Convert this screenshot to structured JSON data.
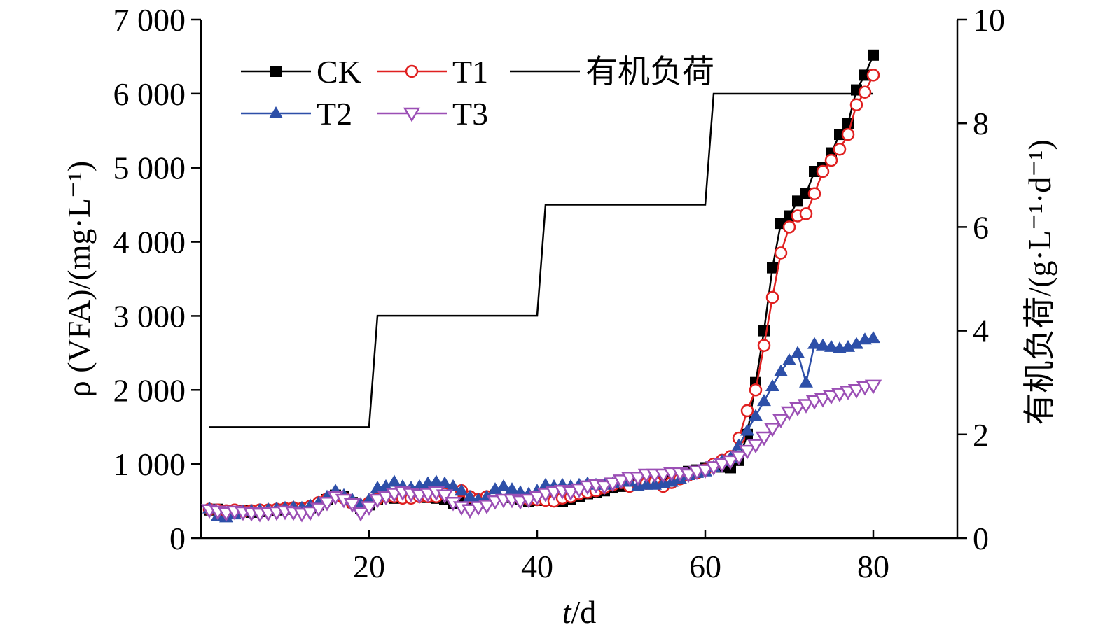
{
  "chart_data": {
    "type": "line",
    "xlabel_var": "t",
    "xlabel_unit": "/d",
    "ylabel_left": "ρ (VFA)/(mg·L⁻¹)",
    "ylabel_right": "有机负荷/(g·L⁻¹·d⁻¹)",
    "xlim": [
      0,
      90
    ],
    "ylim_left": [
      0,
      7000
    ],
    "ylim_right": [
      0,
      10
    ],
    "x_ticks": [
      20,
      40,
      60,
      80
    ],
    "x_tick_labels": [
      "20",
      "40",
      "60",
      "80"
    ],
    "y_left_ticks": [
      0,
      1000,
      2000,
      3000,
      4000,
      5000,
      6000,
      7000
    ],
    "y_left_tick_labels": [
      "0",
      "1 000",
      "2 000",
      "3 000",
      "4 000",
      "5 000",
      "6 000",
      "7 000"
    ],
    "y_right_ticks": [
      0,
      2,
      4,
      6,
      8,
      10
    ],
    "y_right_tick_labels": [
      "0",
      "2",
      "4",
      "6",
      "8",
      "10"
    ],
    "legend_position": "top-left",
    "series": [
      {
        "name": "CK",
        "axis": "left",
        "color": "#000000",
        "marker": "square",
        "x": [
          1,
          2,
          3,
          4,
          5,
          6,
          7,
          8,
          9,
          10,
          11,
          12,
          13,
          14,
          15,
          16,
          17,
          18,
          19,
          20,
          21,
          22,
          23,
          24,
          25,
          26,
          27,
          28,
          29,
          30,
          31,
          32,
          33,
          34,
          35,
          36,
          37,
          38,
          39,
          40,
          41,
          42,
          43,
          44,
          45,
          46,
          47,
          48,
          49,
          50,
          51,
          52,
          53,
          54,
          55,
          56,
          57,
          58,
          59,
          60,
          61,
          62,
          63,
          64,
          65,
          66,
          67,
          68,
          69,
          70,
          71,
          72,
          73,
          74,
          75,
          76,
          77,
          78,
          79,
          80
        ],
        "y": [
          380,
          390,
          370,
          360,
          370,
          350,
          360,
          370,
          380,
          390,
          400,
          390,
          410,
          450,
          520,
          580,
          560,
          480,
          400,
          450,
          520,
          560,
          540,
          560,
          560,
          580,
          550,
          540,
          520,
          470,
          560,
          500,
          490,
          540,
          580,
          560,
          550,
          520,
          500,
          510,
          520,
          510,
          500,
          520,
          560,
          600,
          620,
          640,
          680,
          700,
          720,
          740,
          760,
          780,
          800,
          850,
          880,
          900,
          920,
          950,
          980,
          960,
          950,
          1050,
          1400,
          2100,
          2800,
          3650,
          4250,
          4350,
          4550,
          4650,
          4950,
          5000,
          5200,
          5450,
          5600,
          6050,
          6250,
          6520
        ]
      },
      {
        "name": "T1",
        "axis": "left",
        "color": "#e02020",
        "marker": "circle",
        "x": [
          1,
          2,
          3,
          4,
          5,
          6,
          7,
          8,
          9,
          10,
          11,
          12,
          13,
          14,
          15,
          16,
          17,
          18,
          19,
          20,
          21,
          22,
          23,
          24,
          25,
          26,
          27,
          28,
          29,
          30,
          31,
          32,
          33,
          34,
          35,
          36,
          37,
          38,
          39,
          40,
          41,
          42,
          43,
          44,
          45,
          46,
          47,
          48,
          49,
          50,
          51,
          52,
          53,
          54,
          55,
          56,
          57,
          58,
          59,
          60,
          61,
          62,
          63,
          64,
          65,
          66,
          67,
          68,
          69,
          70,
          71,
          72,
          73,
          74,
          75,
          76,
          77,
          78,
          79,
          80
        ],
        "y": [
          390,
          380,
          370,
          380,
          360,
          370,
          380,
          380,
          390,
          400,
          410,
          400,
          430,
          480,
          530,
          570,
          540,
          470,
          430,
          480,
          530,
          560,
          560,
          540,
          540,
          560,
          560,
          560,
          600,
          580,
          640,
          560,
          520,
          560,
          580,
          580,
          560,
          540,
          520,
          520,
          510,
          500,
          540,
          560,
          600,
          620,
          640,
          680,
          720,
          750,
          700,
          720,
          740,
          760,
          700,
          750,
          800,
          850,
          880,
          920,
          1000,
          1050,
          1100,
          1350,
          1720,
          2000,
          2600,
          3250,
          3850,
          4200,
          4350,
          4380,
          4650,
          4950,
          5100,
          5250,
          5450,
          5850,
          6020,
          6250
        ]
      },
      {
        "name": "T2",
        "axis": "left",
        "color": "#2d4fa8",
        "marker": "triangle-up",
        "x": [
          1,
          2,
          3,
          4,
          5,
          6,
          7,
          8,
          9,
          10,
          11,
          12,
          13,
          14,
          15,
          16,
          17,
          18,
          19,
          20,
          21,
          22,
          23,
          24,
          25,
          26,
          27,
          28,
          29,
          30,
          31,
          32,
          33,
          34,
          35,
          36,
          37,
          38,
          39,
          40,
          41,
          42,
          43,
          44,
          45,
          46,
          47,
          48,
          49,
          50,
          51,
          52,
          53,
          54,
          55,
          56,
          57,
          58,
          59,
          60,
          61,
          62,
          63,
          64,
          65,
          66,
          67,
          68,
          69,
          70,
          71,
          72,
          73,
          74,
          75,
          76,
          77,
          78,
          79,
          80
        ],
        "y": [
          400,
          300,
          280,
          320,
          360,
          370,
          380,
          390,
          400,
          410,
          420,
          410,
          440,
          480,
          560,
          640,
          580,
          520,
          460,
          520,
          680,
          700,
          760,
          700,
          680,
          700,
          740,
          760,
          740,
          700,
          640,
          560,
          520,
          560,
          660,
          700,
          660,
          620,
          600,
          640,
          720,
          700,
          720,
          700,
          720,
          740,
          720,
          720,
          740,
          760,
          760,
          700,
          720,
          720,
          740,
          760,
          800,
          850,
          880,
          900,
          960,
          1040,
          1080,
          1250,
          1450,
          1650,
          1850,
          2050,
          2250,
          2400,
          2500,
          2100,
          2620,
          2600,
          2580,
          2560,
          2580,
          2620,
          2680,
          2700
        ]
      },
      {
        "name": "T3",
        "axis": "left",
        "color": "#9b4fb5",
        "marker": "triangle-down",
        "x": [
          1,
          2,
          3,
          4,
          5,
          6,
          7,
          8,
          9,
          10,
          11,
          12,
          13,
          14,
          15,
          16,
          17,
          18,
          19,
          20,
          21,
          22,
          23,
          24,
          25,
          26,
          27,
          28,
          29,
          30,
          31,
          32,
          33,
          34,
          35,
          36,
          37,
          38,
          39,
          40,
          41,
          42,
          43,
          44,
          45,
          46,
          47,
          48,
          49,
          50,
          51,
          52,
          53,
          54,
          55,
          56,
          57,
          58,
          59,
          60,
          61,
          62,
          63,
          64,
          65,
          66,
          67,
          68,
          69,
          70,
          71,
          72,
          73,
          74,
          75,
          76,
          77,
          78,
          79,
          80
        ],
        "y": [
          380,
          360,
          340,
          360,
          350,
          340,
          330,
          340,
          350,
          360,
          350,
          330,
          350,
          400,
          480,
          560,
          520,
          460,
          340,
          420,
          520,
          560,
          600,
          620,
          600,
          580,
          600,
          620,
          580,
          480,
          420,
          380,
          420,
          440,
          500,
          520,
          520,
          500,
          520,
          560,
          600,
          620,
          640,
          620,
          660,
          700,
          720,
          700,
          740,
          780,
          820,
          820,
          860,
          860,
          860,
          880,
          880,
          860,
          900,
          920,
          960,
          1000,
          1040,
          1100,
          1180,
          1260,
          1360,
          1480,
          1600,
          1700,
          1760,
          1800,
          1850,
          1880,
          1920,
          1950,
          1980,
          2000,
          2040,
          2060
        ]
      },
      {
        "name": "有机负荷",
        "axis": "right",
        "color": "#000000",
        "marker": "none",
        "x": [
          1,
          20,
          21,
          40,
          41,
          60,
          61,
          80
        ],
        "y": [
          2.14,
          2.14,
          4.29,
          4.29,
          6.43,
          6.43,
          8.57,
          8.57
        ]
      }
    ]
  }
}
